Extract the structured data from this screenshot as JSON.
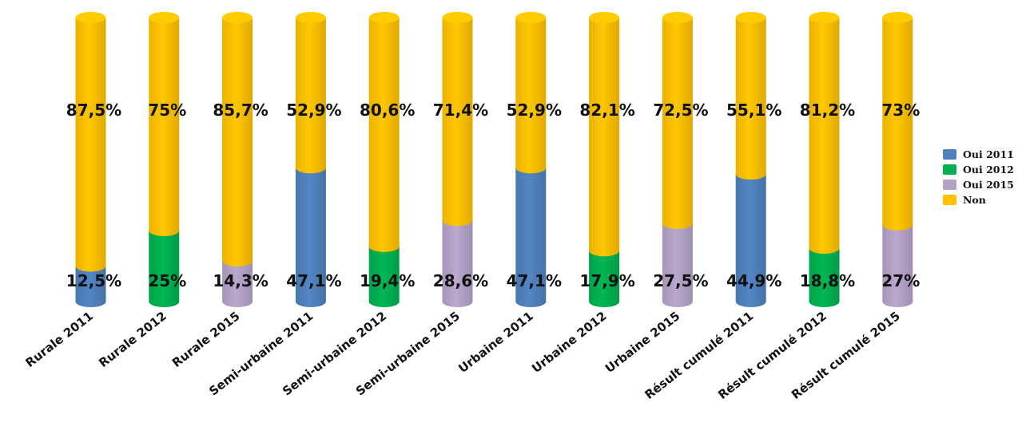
{
  "chart_data": {
    "type": "bar",
    "stacked": true,
    "percent": true,
    "categories": [
      "Rurale 2011",
      "Rurale 2012",
      "Rurale 2015",
      "Semi-urbaine 2011",
      "Semi-urbaine 2012",
      "Semi-urbaine 2015",
      "Urbaine 2011",
      "Urbaine 2012",
      "Urbaine 2015",
      "Résult cumulé 2011",
      "Résult cumulé 2012",
      "Résult cumulé 2015"
    ],
    "oui_series": [
      "Oui 2011",
      "Oui 2012",
      "Oui 2015",
      "Oui 2011",
      "Oui 2012",
      "Oui 2015",
      "Oui 2011",
      "Oui 2012",
      "Oui 2015",
      "Oui 2011",
      "Oui 2012",
      "Oui 2015"
    ],
    "oui_values": [
      12.5,
      25,
      14.3,
      47.1,
      19.4,
      28.6,
      47.1,
      17.9,
      27.5,
      44.9,
      18.8,
      27
    ],
    "non_values": [
      87.5,
      75,
      85.7,
      52.9,
      80.6,
      71.4,
      52.9,
      82.1,
      72.5,
      55.1,
      81.2,
      73
    ],
    "oui_labels": [
      "12,5%",
      "25%",
      "14,3%",
      "47,1%",
      "19,4%",
      "28,6%",
      "47,1%",
      "17,9%",
      "27,5%",
      "44,9%",
      "18,8%",
      "27%"
    ],
    "non_labels": [
      "87,5%",
      "75%",
      "85,7%",
      "52,9%",
      "80,6%",
      "71,4%",
      "52,9%",
      "82,1%",
      "72,5%",
      "55,1%",
      "81,2%",
      "73%"
    ],
    "legend": [
      {
        "name": "Oui 2011",
        "color": "#4F81BD"
      },
      {
        "name": "Oui 2012",
        "color": "#00B050"
      },
      {
        "name": "Oui 2015",
        "color": "#B3A2C7"
      },
      {
        "name": "Non",
        "color": "#FFC000"
      }
    ],
    "legend_position": "right",
    "ylim": [
      0,
      100
    ],
    "grid": false
  }
}
